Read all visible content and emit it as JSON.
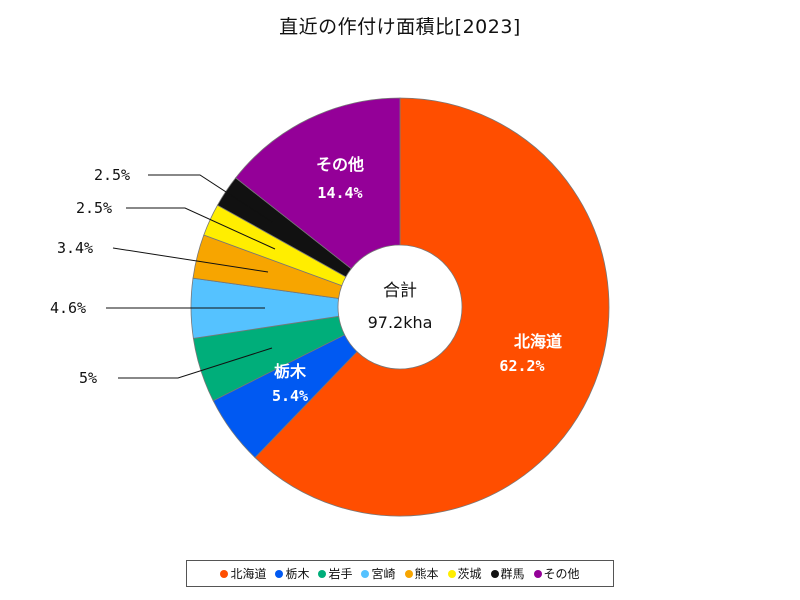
{
  "chart_data": {
    "type": "pie",
    "title": "直近の作付け面積比[2023]",
    "center_label": "合計",
    "center_value": "97.2kha",
    "slices": [
      {
        "name": "北海道",
        "value": 62.2,
        "label": "62.2%",
        "color": "#ff4e00"
      },
      {
        "name": "栃木",
        "value": 5.4,
        "label": "5.4%",
        "color": "#0059f2"
      },
      {
        "name": "岩手",
        "value": 5.0,
        "label": "5%",
        "color": "#00ae7a"
      },
      {
        "name": "宮崎",
        "value": 4.6,
        "label": "4.6%",
        "color": "#55c2ff"
      },
      {
        "name": "熊本",
        "value": 3.4,
        "label": "3.4%",
        "color": "#f7a500"
      },
      {
        "name": "茨城",
        "value": 2.5,
        "label": "2.5%",
        "color": "#ffee00"
      },
      {
        "name": "群馬",
        "value": 2.5,
        "label": "2.5%",
        "color": "#111111"
      },
      {
        "name": "その他",
        "value": 14.4,
        "label": "14.4%",
        "color": "#940098"
      }
    ]
  }
}
